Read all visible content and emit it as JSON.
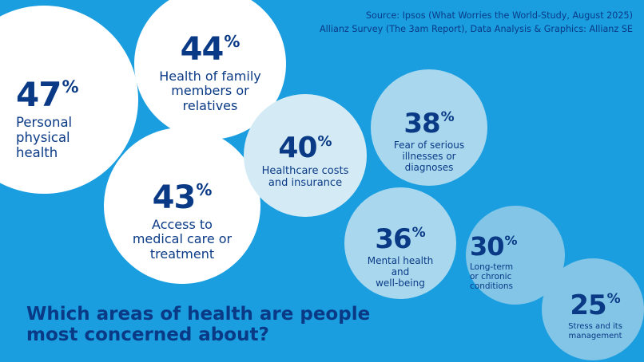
{
  "colors": {
    "background": "#1a9ee0",
    "text_dark": "#0a3a86",
    "bubble_white": "#ffffff",
    "bubble_light": "#d4ebf5",
    "bubble_mid": "#a9d8ee",
    "bubble_dark": "#82c5e6"
  },
  "source_lines": [
    "Source: Ipsos (What Worries the World-Study, August 2025)",
    "Allianz Survey (The 3am Report), Data Analysis & Graphics: Allianz SE"
  ],
  "headline_lines": [
    "Which areas of health are people",
    "most concerned about?"
  ],
  "chart_data": {
    "type": "bubble",
    "title": "Which areas of health are people most concerned about?",
    "unit": "%",
    "categories": [
      "Personal physical health",
      "Health of family members or relatives",
      "Access to medical care or treatment",
      "Healthcare costs and insurance",
      "Fear of serious illnesses or diagnoses",
      "Mental health and well-being",
      "Long-term or chronic conditions",
      "Stress and its management"
    ],
    "values": [
      47,
      44,
      43,
      40,
      38,
      36,
      30,
      25
    ],
    "label_lines": [
      [
        "Personal",
        "physical",
        "health"
      ],
      [
        "Health of family",
        "members or",
        "relatives"
      ],
      [
        "Access to",
        "medical care or",
        "treatment"
      ],
      [
        "Healthcare costs",
        "and insurance"
      ],
      [
        "Fear of serious",
        "illnesses or",
        "diagnoses"
      ],
      [
        "Mental health",
        "and",
        "well-being"
      ],
      [
        "Long-term",
        "or chronic",
        "conditions"
      ],
      [
        "Stress and its",
        "management"
      ]
    ]
  }
}
